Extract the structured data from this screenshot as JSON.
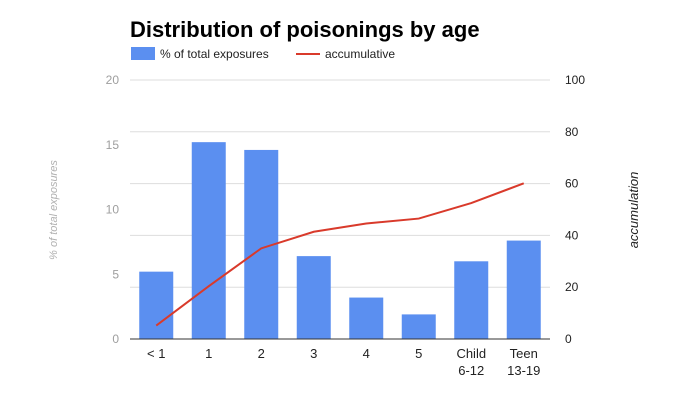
{
  "chart_data": {
    "type": "bar",
    "title": "Distribution of poisonings by age",
    "categories": [
      [
        "< 1"
      ],
      [
        "1"
      ],
      [
        "2"
      ],
      [
        "3"
      ],
      [
        "4"
      ],
      [
        "5"
      ],
      [
        "Child",
        "6-12"
      ],
      [
        "Teen",
        "13-19"
      ]
    ],
    "series": [
      {
        "name": "% of total exposures",
        "type": "bar",
        "axis": "left",
        "color": "#5b8ff0",
        "values": [
          5.2,
          15.2,
          14.6,
          6.4,
          3.2,
          1.9,
          6.0,
          7.6
        ]
      },
      {
        "name": "accumulative",
        "type": "line",
        "axis": "right",
        "color": "#d93a2b",
        "values": [
          5.2,
          20.4,
          35.0,
          41.4,
          44.6,
          46.5,
          52.5,
          60.1
        ]
      }
    ],
    "ylabel": "% of total exposures",
    "ylim": [
      0,
      20
    ],
    "yticks": [
      0,
      5,
      10,
      15,
      20
    ],
    "y2label": "accumulation",
    "y2lim": [
      0,
      100
    ],
    "y2ticks": [
      0,
      20,
      40,
      60,
      80,
      100
    ],
    "grid": true,
    "legend": "top-left"
  }
}
